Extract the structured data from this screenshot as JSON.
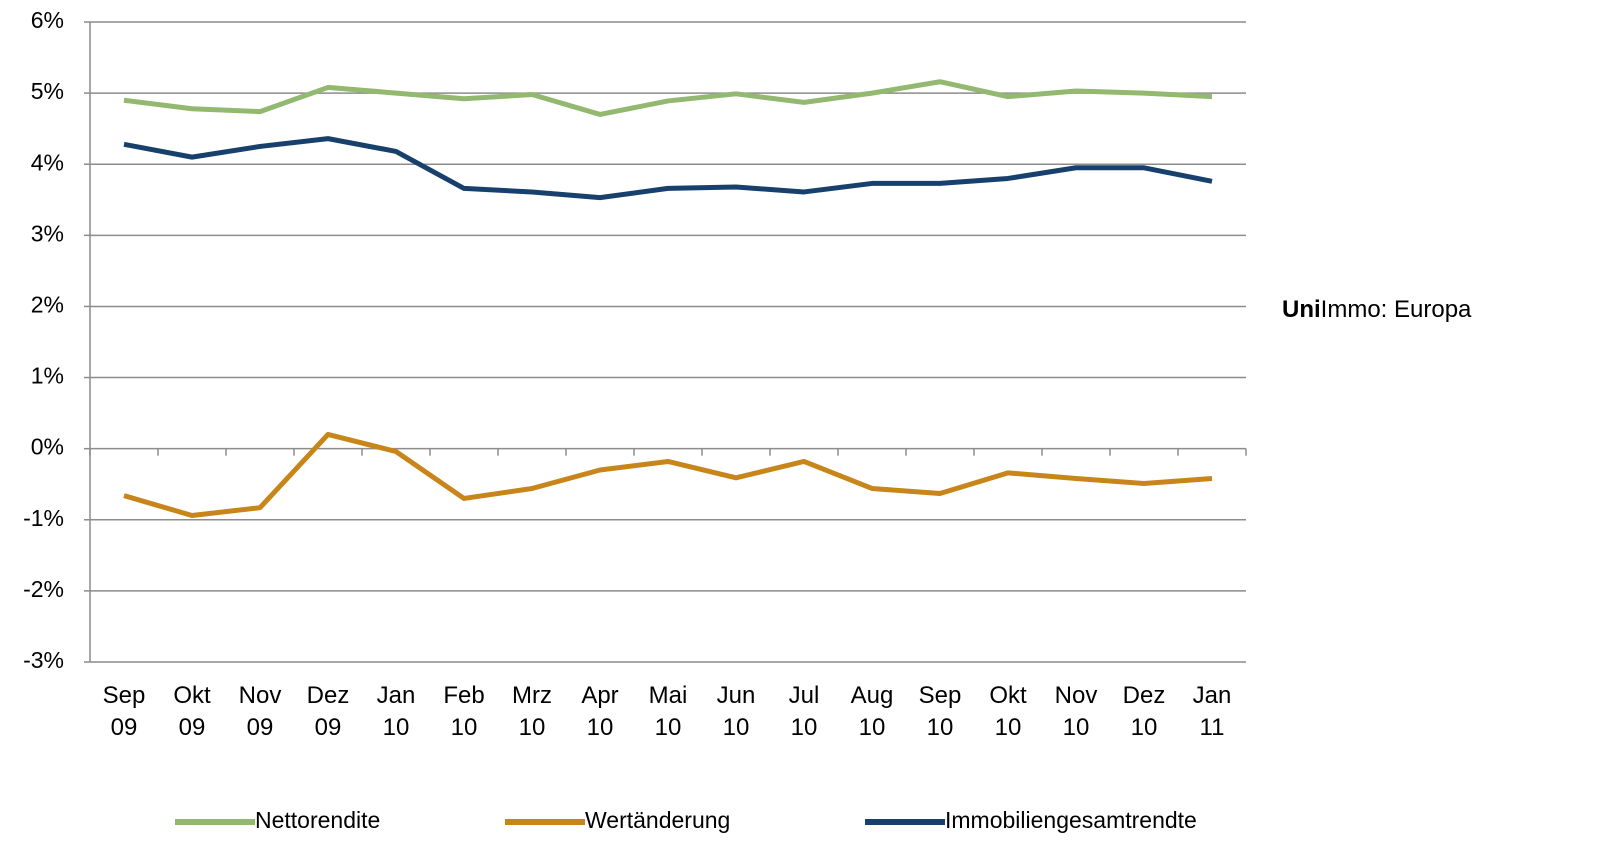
{
  "chart_data": {
    "type": "line",
    "categories": [
      "Sep 09",
      "Okt 09",
      "Nov 09",
      "Dez 09",
      "Jan 10",
      "Feb 10",
      "Mrz 10",
      "Apr 10",
      "Mai 10",
      "Jun 10",
      "Jul 10",
      "Aug 10",
      "Sep 10",
      "Okt 10",
      "Nov 10",
      "Dez 10",
      "Jan 11"
    ],
    "series": [
      {
        "name": "Nettorendite",
        "color": "#93b86f",
        "values": [
          4.9,
          4.78,
          4.74,
          5.08,
          5.0,
          4.92,
          4.98,
          4.7,
          4.89,
          4.99,
          4.87,
          5.0,
          5.16,
          4.95,
          5.03,
          5.0,
          4.95
        ]
      },
      {
        "name": "Wertänderung",
        "color": "#c8861a",
        "values": [
          -0.66,
          -0.94,
          -0.83,
          0.2,
          -0.04,
          -0.7,
          -0.56,
          -0.3,
          -0.18,
          -0.41,
          -0.18,
          -0.56,
          -0.63,
          -0.34,
          -0.42,
          -0.49,
          -0.42
        ]
      },
      {
        "name": "Immobiliengesamtrendte",
        "color": "#17406d",
        "values": [
          4.28,
          4.1,
          4.25,
          4.36,
          4.18,
          3.66,
          3.61,
          3.53,
          3.66,
          3.68,
          3.61,
          3.73,
          3.73,
          3.8,
          3.95,
          3.95,
          3.76
        ]
      }
    ],
    "ylim": [
      -3,
      6
    ],
    "yticks": [
      {
        "value": -3,
        "label": "-3%"
      },
      {
        "value": -2,
        "label": "-2%"
      },
      {
        "value": -1,
        "label": "-1%"
      },
      {
        "value": 0,
        "label": "0%"
      },
      {
        "value": 1,
        "label": "1%"
      },
      {
        "value": 2,
        "label": "2%"
      },
      {
        "value": 3,
        "label": "3%"
      },
      {
        "value": 4,
        "label": "4%"
      },
      {
        "value": 5,
        "label": "5%"
      },
      {
        "value": 6,
        "label": "6%"
      }
    ],
    "negative_tick_color": "#ff0000",
    "grid": true,
    "legend": "bottom",
    "annotation_bold": "Uni",
    "annotation_rest": "Immo: Europa"
  }
}
